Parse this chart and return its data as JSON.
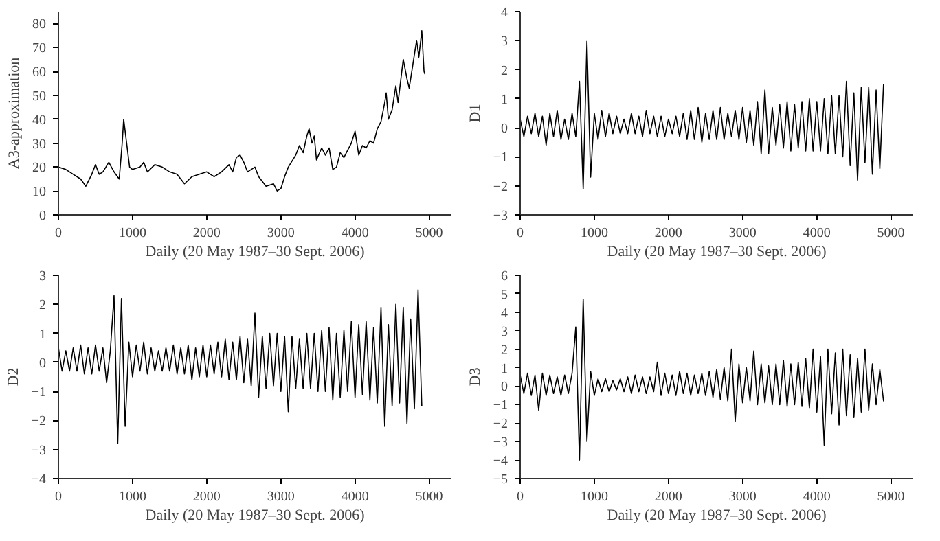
{
  "chart_data": [
    {
      "type": "line",
      "xlabel": "Daily (20 May 1987–30 Sept. 2006)",
      "ylabel": "A3-approximation",
      "xlim": [
        0,
        5300
      ],
      "ylim": [
        0,
        85
      ],
      "xticks": [
        0,
        1000,
        2000,
        3000,
        4000,
        5000
      ],
      "yticks": [
        0,
        10,
        20,
        30,
        40,
        50,
        60,
        70,
        80
      ],
      "grid": false,
      "x": [
        0,
        100,
        200,
        300,
        370,
        450,
        500,
        550,
        600,
        680,
        750,
        820,
        860,
        880,
        920,
        960,
        1000,
        1100,
        1150,
        1200,
        1300,
        1400,
        1500,
        1600,
        1700,
        1800,
        1900,
        2000,
        2100,
        2200,
        2300,
        2350,
        2400,
        2450,
        2500,
        2550,
        2650,
        2700,
        2800,
        2900,
        2950,
        3000,
        3050,
        3100,
        3200,
        3250,
        3300,
        3350,
        3380,
        3420,
        3450,
        3480,
        3550,
        3600,
        3650,
        3700,
        3750,
        3800,
        3850,
        3950,
        4000,
        4050,
        4100,
        4150,
        4200,
        4250,
        4300,
        4350,
        4400,
        4420,
        4450,
        4500,
        4550,
        4580,
        4630,
        4650,
        4700,
        4730,
        4780,
        4830,
        4860,
        4900,
        4930,
        4940
      ],
      "series": [
        {
          "color": "#000000",
          "values": [
            20,
            19,
            17,
            15,
            12,
            17,
            21,
            17,
            18,
            22,
            18,
            15,
            30,
            40,
            30,
            20,
            19,
            20,
            22,
            18,
            21,
            20,
            18,
            17,
            13,
            16,
            17,
            18,
            16,
            18,
            21,
            18,
            24,
            25,
            22,
            18,
            20,
            16,
            12,
            13,
            10,
            11,
            16,
            20,
            25,
            29,
            26,
            33,
            36,
            30,
            33,
            23,
            28,
            25,
            28,
            19,
            20,
            26,
            24,
            30,
            35,
            25,
            29,
            28,
            31,
            30,
            36,
            39,
            47,
            51,
            40,
            44,
            54,
            47,
            60,
            65,
            57,
            53,
            63,
            73,
            66,
            77,
            60,
            59
          ]
        }
      ]
    },
    {
      "type": "line",
      "xlabel": "Daily (20 May 1987–30 Sept. 2006)",
      "ylabel": "D1",
      "xlim": [
        0,
        5300
      ],
      "ylim": [
        -3,
        4
      ],
      "xticks": [
        0,
        1000,
        2000,
        3000,
        4000,
        5000
      ],
      "yticks": [
        {
          "value": -3,
          "label": "−3"
        },
        {
          "value": -2,
          "label": "−2"
        },
        {
          "value": -1,
          "label": "−1"
        },
        0,
        1,
        2,
        3,
        4
      ],
      "grid": false,
      "x": [
        0,
        50,
        100,
        150,
        200,
        250,
        300,
        350,
        400,
        450,
        500,
        550,
        600,
        650,
        700,
        750,
        800,
        850,
        900,
        950,
        1000,
        1050,
        1100,
        1150,
        1200,
        1250,
        1300,
        1350,
        1400,
        1450,
        1500,
        1550,
        1600,
        1650,
        1700,
        1750,
        1800,
        1850,
        1900,
        1950,
        2000,
        2050,
        2100,
        2150,
        2200,
        2250,
        2300,
        2350,
        2400,
        2450,
        2500,
        2550,
        2600,
        2650,
        2700,
        2750,
        2800,
        2850,
        2900,
        2950,
        3000,
        3050,
        3100,
        3150,
        3200,
        3250,
        3300,
        3350,
        3400,
        3450,
        3500,
        3550,
        3600,
        3650,
        3700,
        3750,
        3800,
        3850,
        3900,
        3950,
        4000,
        4050,
        4100,
        4150,
        4200,
        4250,
        4300,
        4350,
        4400,
        4450,
        4500,
        4550,
        4600,
        4650,
        4700,
        4750,
        4800,
        4850,
        4900
      ],
      "series": [
        {
          "color": "#000000",
          "values": [
            0.3,
            -0.3,
            0.4,
            -0.2,
            0.5,
            -0.3,
            0.4,
            -0.6,
            0.5,
            -0.3,
            0.6,
            -0.4,
            0.3,
            -0.4,
            0.5,
            -0.3,
            1.6,
            -2.1,
            3.0,
            -1.7,
            0.5,
            -0.4,
            0.6,
            -0.3,
            0.5,
            -0.2,
            0.4,
            -0.2,
            0.3,
            -0.2,
            0.5,
            -0.2,
            0.4,
            -0.3,
            0.6,
            -0.2,
            0.4,
            -0.3,
            0.4,
            -0.3,
            0.3,
            -0.2,
            0.4,
            -0.3,
            0.5,
            -0.4,
            0.6,
            -0.4,
            0.7,
            -0.5,
            0.5,
            -0.4,
            0.6,
            -0.4,
            0.7,
            -0.4,
            0.5,
            -0.3,
            0.6,
            -0.4,
            0.7,
            -0.5,
            0.6,
            -0.6,
            0.9,
            -0.9,
            1.3,
            -0.9,
            0.7,
            -0.6,
            0.8,
            -0.7,
            0.9,
            -0.8,
            0.8,
            -0.7,
            0.9,
            -0.8,
            1.0,
            -0.8,
            0.9,
            -0.8,
            1.0,
            -0.9,
            1.1,
            -0.9,
            1.1,
            -1.0,
            1.6,
            -1.3,
            1.2,
            -1.8,
            1.4,
            -1.2,
            1.4,
            -1.6,
            1.3,
            -1.4,
            1.5
          ]
        }
      ]
    },
    {
      "type": "line",
      "xlabel": "Daily (20 May 1987–30 Sept. 2006)",
      "ylabel": "D2",
      "xlim": [
        0,
        5300
      ],
      "ylim": [
        -4,
        3
      ],
      "xticks": [
        0,
        1000,
        2000,
        3000,
        4000,
        5000
      ],
      "yticks": [
        {
          "value": -4,
          "label": "−4"
        },
        {
          "value": -3,
          "label": "−3"
        },
        {
          "value": -2,
          "label": "−2"
        },
        {
          "value": -1,
          "label": "−1"
        },
        0,
        1,
        2,
        3
      ],
      "grid": false,
      "x": [
        0,
        50,
        100,
        150,
        200,
        250,
        300,
        350,
        400,
        450,
        500,
        550,
        600,
        650,
        700,
        750,
        800,
        850,
        900,
        950,
        1000,
        1050,
        1100,
        1150,
        1200,
        1250,
        1300,
        1350,
        1400,
        1450,
        1500,
        1550,
        1600,
        1650,
        1700,
        1750,
        1800,
        1850,
        1900,
        1950,
        2000,
        2050,
        2100,
        2150,
        2200,
        2250,
        2300,
        2350,
        2400,
        2450,
        2500,
        2550,
        2600,
        2650,
        2700,
        2750,
        2800,
        2850,
        2900,
        2950,
        3000,
        3050,
        3100,
        3150,
        3200,
        3250,
        3300,
        3350,
        3400,
        3450,
        3500,
        3550,
        3600,
        3650,
        3700,
        3750,
        3800,
        3850,
        3900,
        3950,
        4000,
        4050,
        4100,
        4150,
        4200,
        4250,
        4300,
        4350,
        4400,
        4450,
        4500,
        4550,
        4600,
        4650,
        4700,
        4750,
        4800,
        4850,
        4900
      ],
      "series": [
        {
          "color": "#000000",
          "values": [
            0.5,
            -0.3,
            0.4,
            -0.3,
            0.5,
            -0.3,
            0.6,
            -0.4,
            0.5,
            -0.4,
            0.6,
            -0.3,
            0.5,
            -0.7,
            0.4,
            2.3,
            -2.8,
            2.2,
            -2.2,
            0.7,
            -0.5,
            0.6,
            -0.3,
            0.7,
            -0.4,
            0.5,
            -0.3,
            0.4,
            -0.3,
            0.5,
            -0.3,
            0.6,
            -0.4,
            0.5,
            -0.4,
            0.6,
            -0.6,
            0.5,
            -0.5,
            0.6,
            -0.5,
            0.6,
            -0.4,
            0.7,
            -0.5,
            0.8,
            -0.6,
            0.7,
            -0.6,
            0.9,
            -0.7,
            0.8,
            -0.8,
            1.7,
            -1.2,
            0.9,
            -0.9,
            1.0,
            -0.8,
            1.0,
            -1.0,
            0.9,
            -1.7,
            0.9,
            -0.9,
            0.8,
            -0.9,
            1.0,
            -0.9,
            1.0,
            -1.0,
            1.1,
            -1.0,
            1.2,
            -1.3,
            1.0,
            -1.2,
            1.1,
            -1.0,
            1.4,
            -1.2,
            1.3,
            -1.1,
            1.4,
            -1.3,
            1.2,
            -1.4,
            1.9,
            -2.2,
            1.3,
            -1.5,
            2.0,
            -1.4,
            1.9,
            -2.1,
            1.5,
            -1.6,
            2.5,
            -1.5
          ]
        }
      ]
    },
    {
      "type": "line",
      "xlabel": "Daily (20 May 1987–30 Sept. 2006)",
      "ylabel": "D3",
      "xlim": [
        0,
        5300
      ],
      "ylim": [
        -5,
        6
      ],
      "xticks": [
        0,
        1000,
        2000,
        3000,
        4000,
        5000
      ],
      "yticks": [
        {
          "value": -5,
          "label": "−5"
        },
        {
          "value": -4,
          "label": "−4"
        },
        {
          "value": -3,
          "label": "−3"
        },
        {
          "value": -2,
          "label": "−2"
        },
        {
          "value": -1,
          "label": "−1"
        },
        0,
        1,
        2,
        3,
        4,
        5,
        6
      ],
      "grid": false,
      "x": [
        0,
        50,
        100,
        150,
        200,
        250,
        300,
        350,
        400,
        450,
        500,
        550,
        600,
        650,
        700,
        750,
        800,
        850,
        900,
        950,
        1000,
        1050,
        1100,
        1150,
        1200,
        1250,
        1300,
        1350,
        1400,
        1450,
        1500,
        1550,
        1600,
        1650,
        1700,
        1750,
        1800,
        1850,
        1900,
        1950,
        2000,
        2050,
        2100,
        2150,
        2200,
        2250,
        2300,
        2350,
        2400,
        2450,
        2500,
        2550,
        2600,
        2650,
        2700,
        2750,
        2800,
        2850,
        2900,
        2950,
        3000,
        3050,
        3100,
        3150,
        3200,
        3250,
        3300,
        3350,
        3400,
        3450,
        3500,
        3550,
        3600,
        3650,
        3700,
        3750,
        3800,
        3850,
        3900,
        3950,
        4000,
        4050,
        4100,
        4150,
        4200,
        4250,
        4300,
        4350,
        4400,
        4450,
        4500,
        4550,
        4600,
        4650,
        4700,
        4750,
        4800,
        4850,
        4900
      ],
      "series": [
        {
          "color": "#000000",
          "values": [
            0.6,
            -0.4,
            0.7,
            -0.5,
            0.6,
            -1.3,
            0.7,
            -0.5,
            0.6,
            -0.4,
            0.5,
            -0.5,
            0.6,
            -0.4,
            0.7,
            3.2,
            -4.0,
            4.7,
            -3.0,
            0.8,
            -0.5,
            0.4,
            -0.3,
            0.4,
            -0.3,
            0.3,
            -0.2,
            0.4,
            -0.3,
            0.5,
            -0.4,
            0.6,
            -0.3,
            0.5,
            -0.4,
            0.5,
            -0.3,
            1.3,
            -0.5,
            0.7,
            -0.4,
            0.6,
            -0.5,
            0.8,
            -0.4,
            0.7,
            -0.5,
            0.6,
            -0.4,
            0.7,
            -0.5,
            0.8,
            -0.6,
            0.9,
            -0.7,
            1.0,
            -0.8,
            2.0,
            -1.9,
            1.2,
            -0.9,
            1.0,
            -0.8,
            1.9,
            -1.0,
            1.2,
            -0.9,
            1.1,
            -1.0,
            1.2,
            -1.0,
            1.4,
            -1.1,
            1.2,
            -1.0,
            1.3,
            -1.1,
            1.5,
            -1.2,
            2.0,
            -1.4,
            1.6,
            -3.2,
            2.0,
            -1.5,
            1.8,
            -2.1,
            2.0,
            -1.6,
            1.7,
            -1.7,
            1.5,
            -1.4,
            2.0,
            -1.3,
            1.2,
            -1.0,
            0.9,
            -0.8
          ]
        }
      ]
    }
  ]
}
